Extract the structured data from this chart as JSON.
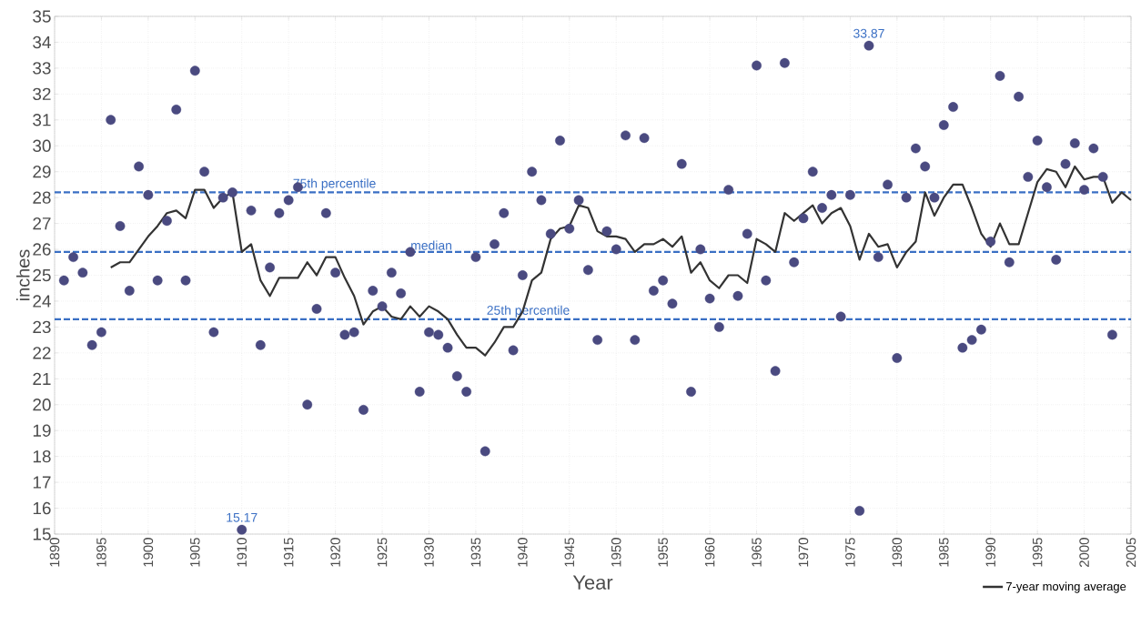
{
  "chart_data": {
    "type": "scatter",
    "xlabel": "Year",
    "ylabel": "inches",
    "xlim": [
      1890,
      2005
    ],
    "xticks": [
      1890,
      1895,
      1900,
      1905,
      1910,
      1915,
      1920,
      1925,
      1930,
      1935,
      1940,
      1945,
      1950,
      1955,
      1960,
      1965,
      1970,
      1975,
      1980,
      1985,
      1990,
      1995,
      2000,
      2005
    ],
    "ylim": [
      15,
      35
    ],
    "yticks": [
      15,
      16,
      17,
      18,
      19,
      20,
      21,
      22,
      23,
      24,
      25,
      26,
      27,
      28,
      29,
      30,
      31,
      32,
      33,
      34,
      35
    ],
    "grid": true,
    "legend": "bottom right",
    "marker": "circle",
    "series": [
      {
        "color": "#4a4a80",
        "x": [
          1891,
          1892,
          1893,
          1894,
          1895,
          1896,
          1897,
          1898,
          1899,
          1900,
          1901,
          1902,
          1903,
          1904,
          1905,
          1906,
          1907,
          1908,
          1909,
          1910,
          1911,
          1912,
          1913,
          1914,
          1915,
          1916,
          1917,
          1918,
          1919,
          1920,
          1921,
          1922,
          1923,
          1924,
          1925,
          1926,
          1927,
          1928,
          1929,
          1930,
          1931,
          1932,
          1933,
          1934,
          1935,
          1936,
          1937,
          1938,
          1939,
          1940,
          1941,
          1942,
          1943,
          1944,
          1945,
          1946,
          1947,
          1948,
          1949,
          1950,
          1951,
          1952,
          1953,
          1954,
          1955,
          1956,
          1957,
          1958,
          1959,
          1960,
          1961,
          1962,
          1963,
          1964,
          1965,
          1966,
          1967,
          1968,
          1969,
          1970,
          1971,
          1972,
          1973,
          1974,
          1975,
          1976,
          1977,
          1978,
          1979,
          1980,
          1981,
          1982,
          1983,
          1984,
          1985,
          1986,
          1987,
          1988,
          1989,
          1990,
          1991,
          1992,
          1993,
          1994,
          1995,
          1996,
          1997,
          1998,
          1999,
          2000,
          2001,
          2002,
          2003
        ],
        "values": [
          24.8,
          25.7,
          25.1,
          22.3,
          22.8,
          31.0,
          26.9,
          24.4,
          29.2,
          28.1,
          24.8,
          27.1,
          31.4,
          24.8,
          32.9,
          29.0,
          22.8,
          28.0,
          28.2,
          15.17,
          27.5,
          22.3,
          25.3,
          27.4,
          27.9,
          28.4,
          20.0,
          23.7,
          27.4,
          25.1,
          22.7,
          22.8,
          19.8,
          24.4,
          23.8,
          25.1,
          24.3,
          25.9,
          20.5,
          22.8,
          22.7,
          22.2,
          21.1,
          20.5,
          25.7,
          18.2,
          26.2,
          27.4,
          22.1,
          25.0,
          29.0,
          27.9,
          26.6,
          30.2,
          26.8,
          27.9,
          25.2,
          22.5,
          26.7,
          26.0,
          30.4,
          22.5,
          30.3,
          24.4,
          24.8,
          23.9,
          29.3,
          20.5,
          26.0,
          24.1,
          23.0,
          28.3,
          24.2,
          26.6,
          33.1,
          24.8,
          21.3,
          33.2,
          25.5,
          27.2,
          29.0,
          27.6,
          28.1,
          23.4,
          28.1,
          15.9,
          33.87,
          25.7,
          28.5,
          21.8,
          28.0,
          29.9,
          29.2,
          28.0,
          30.8,
          31.5,
          22.2,
          22.5,
          22.9,
          26.3,
          32.7,
          25.5,
          31.9,
          28.8,
          30.2,
          28.4,
          25.6,
          29.3,
          30.1,
          28.3,
          29.9,
          28.8,
          22.7
        ]
      },
      {
        "type": "line",
        "name": "7-year moving average",
        "color": "#333333",
        "marker": "none",
        "line_style": "solid",
        "x": [
          1896,
          1897,
          1898,
          1899,
          1900,
          1901,
          1902,
          1903,
          1904,
          1905,
          1906,
          1907,
          1908,
          1909,
          1910,
          1911,
          1912,
          1913,
          1914,
          1915,
          1916,
          1917,
          1918,
          1919,
          1920,
          1921,
          1922,
          1923,
          1924,
          1925,
          1926,
          1927,
          1928,
          1929,
          1930,
          1931,
          1932,
          1933,
          1934,
          1935,
          1936,
          1937,
          1938,
          1939,
          1940,
          1941,
          1942,
          1943,
          1944,
          1945,
          1946,
          1947,
          1948,
          1949,
          1950,
          1951,
          1952,
          1953,
          1954,
          1955,
          1956,
          1957,
          1958,
          1959,
          1960,
          1961,
          1962,
          1963,
          1964,
          1965,
          1966,
          1967,
          1968,
          1969,
          1970,
          1971,
          1972,
          1973,
          1974,
          1975,
          1976,
          1977,
          1978,
          1979,
          1980,
          1981,
          1982,
          1983,
          1984,
          1985,
          1986,
          1987,
          1988,
          1989,
          1990,
          1991,
          1992,
          1993,
          1994,
          1995,
          1996,
          1997,
          1998,
          1999,
          2000,
          2001,
          2002,
          2003,
          2004,
          2005
        ],
        "values": [
          25.3,
          25.5,
          25.5,
          26.0,
          26.5,
          26.9,
          27.4,
          27.5,
          27.2,
          28.3,
          28.3,
          27.6,
          28.0,
          28.2,
          25.9,
          26.2,
          24.8,
          24.2,
          24.9,
          24.9,
          24.9,
          25.5,
          25.0,
          25.7,
          25.7,
          24.9,
          24.2,
          23.1,
          23.6,
          23.8,
          23.4,
          23.3,
          23.8,
          23.4,
          23.8,
          23.6,
          23.3,
          22.7,
          22.2,
          22.2,
          21.9,
          22.4,
          23.0,
          23.0,
          23.6,
          24.8,
          25.1,
          26.4,
          26.8,
          26.9,
          27.7,
          27.6,
          26.7,
          26.5,
          26.5,
          26.4,
          25.9,
          26.2,
          26.2,
          26.4,
          26.1,
          26.5,
          25.1,
          25.5,
          24.8,
          24.5,
          25.0,
          25.0,
          24.7,
          26.4,
          26.2,
          25.9,
          27.4,
          27.1,
          27.4,
          27.7,
          27.0,
          27.4,
          27.6,
          26.9,
          25.6,
          26.6,
          26.1,
          26.2,
          25.3,
          25.9,
          26.3,
          28.2,
          27.3,
          28.0,
          28.5,
          28.5,
          27.6,
          26.6,
          26.1,
          27.0,
          26.2,
          26.2,
          27.4,
          28.6,
          29.1,
          29.0,
          28.4,
          29.2,
          28.7,
          28.8,
          28.8,
          27.8,
          28.2,
          27.9
        ]
      }
    ],
    "ref_lines": [
      {
        "axis": "y",
        "value": 28.2,
        "label": "75th percentile",
        "color": "#3a6fc4",
        "line_style": "dashed"
      },
      {
        "axis": "y",
        "value": 25.9,
        "label": "median",
        "color": "#3a6fc4",
        "line_style": "dashed"
      },
      {
        "axis": "y",
        "value": 23.3,
        "label": "25th percentile",
        "color": "#3a6fc4",
        "line_style": "dashed"
      }
    ],
    "annotations": [
      {
        "text": "15.17",
        "x": 1910,
        "y": 15.17
      },
      {
        "text": "33.87",
        "x": 1977,
        "y": 33.87
      }
    ]
  }
}
